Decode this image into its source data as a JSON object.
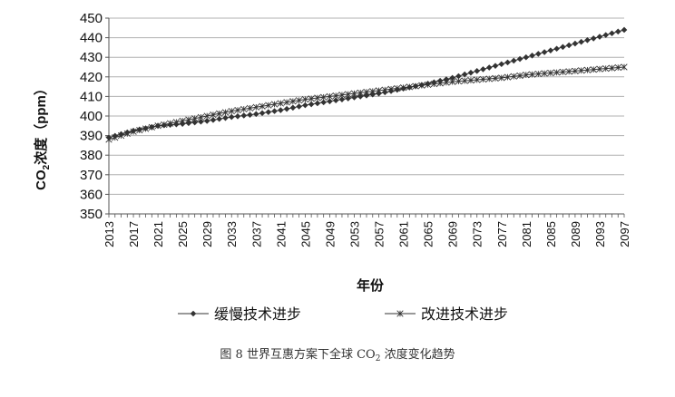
{
  "chart_data": {
    "type": "line",
    "ylabel_prefix": "CO",
    "ylabel_sub": "2",
    "ylabel_suffix": "浓度（ppm）",
    "xlabel": "年份",
    "ylim": [
      350,
      450
    ],
    "y_ticks": [
      350,
      360,
      370,
      380,
      390,
      400,
      410,
      420,
      430,
      440,
      450
    ],
    "x_range": [
      2013,
      2097
    ],
    "x_ticks": [
      2013,
      2017,
      2021,
      2025,
      2029,
      2033,
      2037,
      2041,
      2045,
      2049,
      2053,
      2057,
      2061,
      2065,
      2069,
      2073,
      2077,
      2081,
      2085,
      2089,
      2093,
      2097
    ],
    "grid": "horizontal",
    "legend_position": "bottom",
    "series": [
      {
        "name": "缓慢技术进步",
        "marker": "diamond",
        "anchors": [
          [
            2013,
            389
          ],
          [
            2017,
            392.5
          ],
          [
            2021,
            395
          ],
          [
            2025,
            396
          ],
          [
            2029,
            397.5
          ],
          [
            2033,
            399.5
          ],
          [
            2037,
            401
          ],
          [
            2041,
            403
          ],
          [
            2045,
            405.5
          ],
          [
            2049,
            407.5
          ],
          [
            2053,
            409.5
          ],
          [
            2057,
            411.5
          ],
          [
            2061,
            414
          ],
          [
            2065,
            416.5
          ],
          [
            2069,
            419.5
          ],
          [
            2073,
            423
          ],
          [
            2077,
            426.5
          ],
          [
            2081,
            430
          ],
          [
            2085,
            433.5
          ],
          [
            2089,
            437
          ],
          [
            2093,
            440.5
          ],
          [
            2097,
            444
          ]
        ]
      },
      {
        "name": "改进技术进步",
        "marker": "asterisk",
        "anchors": [
          [
            2013,
            388
          ],
          [
            2017,
            392
          ],
          [
            2021,
            395
          ],
          [
            2025,
            397.5
          ],
          [
            2029,
            400
          ],
          [
            2033,
            402.5
          ],
          [
            2037,
            404.5
          ],
          [
            2041,
            406.5
          ],
          [
            2045,
            408.5
          ],
          [
            2049,
            410
          ],
          [
            2053,
            411.5
          ],
          [
            2057,
            413
          ],
          [
            2061,
            414.5
          ],
          [
            2065,
            416
          ],
          [
            2069,
            417.5
          ],
          [
            2073,
            418.5
          ],
          [
            2077,
            419.5
          ],
          [
            2081,
            421
          ],
          [
            2085,
            422
          ],
          [
            2089,
            423
          ],
          [
            2093,
            424
          ],
          [
            2097,
            425
          ]
        ]
      }
    ],
    "colors": {
      "line": "#333333",
      "grid": "#b0b0b0",
      "axis": "#555555"
    }
  },
  "caption": {
    "prefix": "图 8  世界互惠方案下全球 CO",
    "sub": "2",
    "suffix": " 浓度变化趋势"
  }
}
